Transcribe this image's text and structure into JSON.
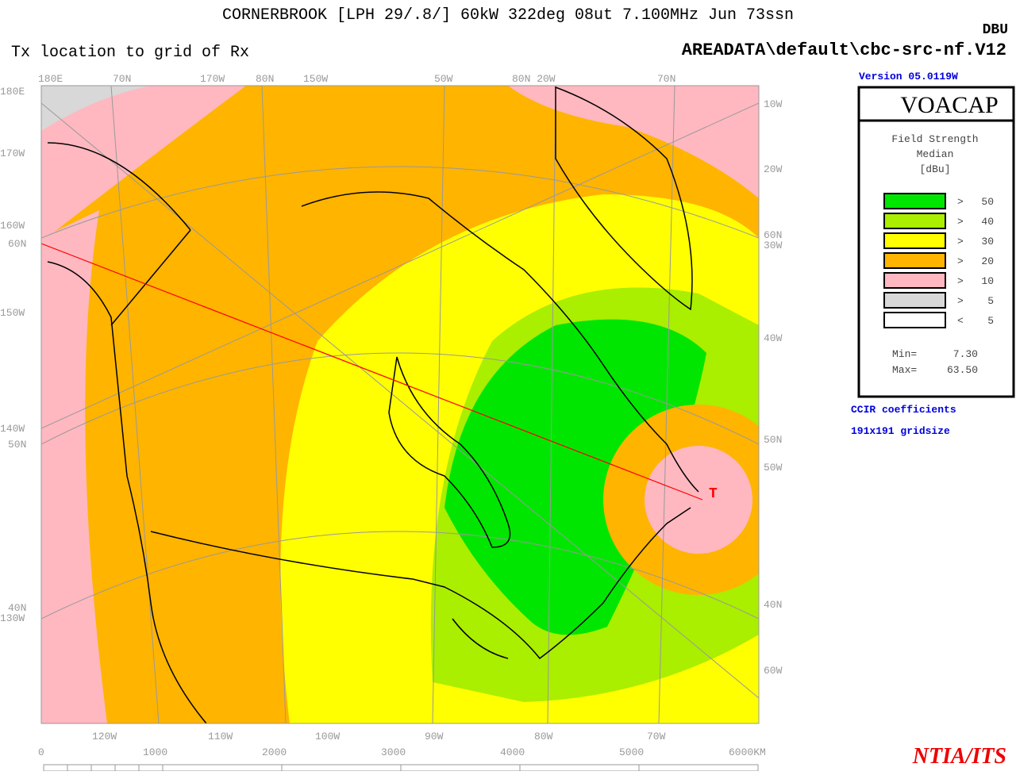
{
  "header": {
    "title": "CORNERBROOK [LPH 29/.8/] 60kW 322deg 08ut 7.100MHz Jun 73ssn",
    "subtitle": "Tx location to grid of Rx",
    "file": "AREADATA\\default\\cbc-src-nf.V12",
    "units": "DBU",
    "version": "Version 05.0119W"
  },
  "map": {
    "top_labels": [
      "180E",
      "70N",
      "170W",
      "80N",
      "150W",
      "50W",
      "80N 20W",
      "70N"
    ],
    "left_labels": [
      "180E",
      "170W",
      "160W",
      "60N",
      "150W",
      "140W",
      "50N",
      "40N",
      "130W"
    ],
    "right_labels": [
      "10W",
      "20W",
      "60N",
      "30W",
      "40W",
      "50N",
      "50W",
      "40N",
      "60W"
    ],
    "bottom_labels": [
      "120W",
      "110W",
      "100W",
      "90W",
      "80W",
      "70W"
    ],
    "scale_labels": [
      "0",
      "1000",
      "2000",
      "3000",
      "4000",
      "5000",
      "6000KM"
    ],
    "tx_marker": "T"
  },
  "legend": {
    "title": "VOACAP",
    "heading": [
      "Field Strength",
      "Median",
      "[dBu]"
    ],
    "items": [
      {
        "color": "#00e600",
        "sign": ">",
        "level": "50"
      },
      {
        "color": "#aaee00",
        "sign": ">",
        "level": "40"
      },
      {
        "color": "#ffff00",
        "sign": ">",
        "level": "30"
      },
      {
        "color": "#ffb400",
        "sign": ">",
        "level": "20"
      },
      {
        "color": "#ffb8c0",
        "sign": ">",
        "level": "10"
      },
      {
        "color": "#d8d8d8",
        "sign": ">",
        "level": "5"
      },
      {
        "color": "#ffffff",
        "sign": "<",
        "level": "5"
      }
    ],
    "min_label": "Min=",
    "min": "7.30",
    "max_label": "Max=",
    "max": "63.50"
  },
  "notes": [
    "CCIR coefficients",
    "191x191 gridsize"
  ],
  "footer": "NTIA/ITS"
}
